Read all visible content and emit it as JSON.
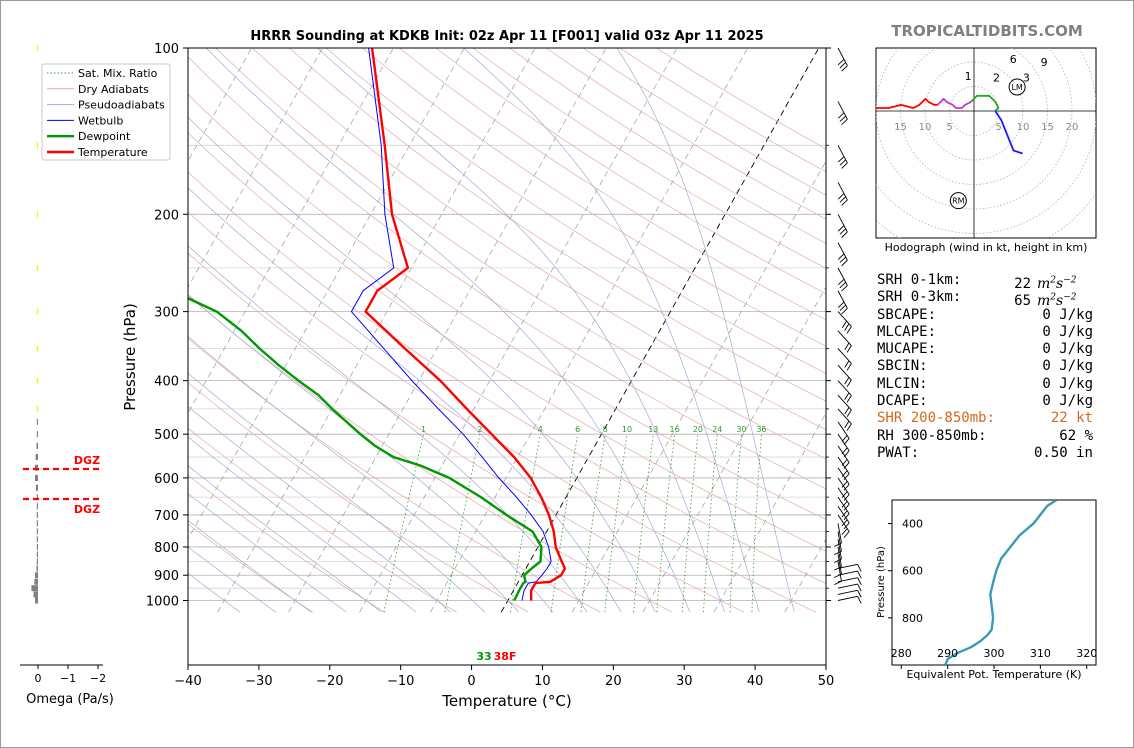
{
  "title": "HRRR Sounding at KDKB Init: 02z Apr 11 [F001] valid 03z Apr 11 2025",
  "watermark": "TROPICALTIDBITS.COM",
  "colors": {
    "temperature": "#ff0000",
    "dewpoint": "#009900",
    "wetbulb": "#0000ff",
    "dry_adiabat": "#e8a8a8",
    "pseudoadiabat": "#a8a8d8",
    "mixing_ratio": "#339933",
    "isotherm": "#888888",
    "theta_e": "#3a9bb5",
    "dgz": "#ff0000"
  },
  "skewt": {
    "xlabel": "Temperature (°C)",
    "ylabel": "Pressure (hPa)",
    "x_ticks": [
      -40,
      -30,
      -20,
      -10,
      0,
      10,
      20,
      30,
      40,
      50
    ],
    "x_tick_labels": [
      "−40",
      "−30",
      "−20",
      "−10",
      "0",
      "10",
      "20",
      "30",
      "40",
      "50"
    ],
    "y_ticks": [
      100,
      200,
      300,
      400,
      500,
      600,
      700,
      800,
      900,
      1000
    ],
    "y_tick_labels": [
      "100",
      "200",
      "300",
      "400",
      "500",
      "600",
      "700",
      "800",
      "900",
      "1000"
    ],
    "legend": [
      "Sat. Mix. Ratio",
      "Dry Adiabats",
      "Pseudoadiabats",
      "Wetbulb",
      "Dewpoint",
      "Temperature"
    ],
    "mixing_ratio_labels": [
      "1",
      "2",
      "4",
      "6",
      "8",
      "10",
      "13",
      "16",
      "20",
      "24",
      "30",
      "36"
    ],
    "surface_dewpoint_label": "33",
    "surface_temperature_label": "38F"
  },
  "chart_data": {
    "type": "line",
    "title": "HRRR Sounding at KDKB Init: 02z Apr 11 [F001] valid 03z Apr 11 2025",
    "xlabel": "Temperature (°C)",
    "ylabel": "Pressure (hPa)",
    "xlim": [
      -40,
      50
    ],
    "ylim": [
      1050,
      100
    ],
    "y_scale": "log",
    "skew": "skew-T log-p",
    "grid": true,
    "legend_position": "top-left",
    "series": [
      {
        "name": "Temperature",
        "p": [
          1000,
          960,
          930,
          925,
          900,
          875,
          850,
          800,
          750,
          700,
          650,
          600,
          550,
          500,
          450,
          400,
          350,
          300,
          275,
          250,
          200,
          150,
          100
        ],
        "t": [
          3.3,
          2.5,
          2.5,
          4.5,
          5.5,
          5.5,
          4.5,
          2.5,
          1.0,
          -1.0,
          -3.5,
          -6.5,
          -10.5,
          -15.5,
          -21.0,
          -27.0,
          -34.5,
          -43.0,
          -43.0,
          -40.5,
          -47.0,
          -53.5,
          -63.0
        ]
      },
      {
        "name": "Dewpoint",
        "p": [
          1000,
          960,
          930,
          925,
          900,
          875,
          850,
          800,
          750,
          700,
          650,
          600,
          570,
          550,
          525,
          500,
          450,
          425,
          400,
          375,
          350,
          325,
          300,
          275,
          250,
          232,
          200,
          175,
          150,
          125,
          100
        ],
        "t": [
          0.9,
          0.8,
          0.8,
          1.0,
          0.3,
          0.8,
          1.5,
          0.5,
          -2.0,
          -7.0,
          -12.0,
          -18.0,
          -23.0,
          -27.5,
          -31.0,
          -34.0,
          -40.0,
          -43.0,
          -47.0,
          -51.0,
          -55.0,
          -59.0,
          -64.0,
          -72.0,
          -82.0,
          -80.0,
          -88.0,
          -96.0,
          -104.0,
          -112.0,
          -120.0
        ]
      },
      {
        "name": "Wetbulb",
        "p": [
          1000,
          960,
          930,
          925,
          900,
          875,
          850,
          800,
          750,
          700,
          650,
          600,
          550,
          500,
          450,
          400,
          350,
          300,
          275,
          250,
          200,
          150,
          100
        ],
        "t": [
          2.0,
          1.5,
          1.5,
          2.5,
          2.8,
          3.0,
          3.0,
          1.5,
          -0.5,
          -3.5,
          -7.0,
          -11.0,
          -15.0,
          -19.5,
          -25.0,
          -31.0,
          -37.5,
          -45.0,
          -45.0,
          -42.5,
          -48.0,
          -54.0,
          -63.5
        ]
      }
    ]
  },
  "omega": {
    "xlabel": "Omega (Pa/s)",
    "x_tick_labels": [
      "0",
      "−1",
      "−2"
    ],
    "dgz_label": "DGZ",
    "p": [
      1000,
      975,
      950,
      925,
      900,
      875,
      850,
      825,
      800,
      775,
      750,
      725,
      700,
      675,
      650,
      625,
      600,
      575,
      550,
      525,
      500,
      475,
      450,
      400,
      350,
      300,
      250,
      200,
      150,
      100
    ],
    "values": [
      0.1,
      0.15,
      0.22,
      0.12,
      0.1,
      0.05,
      0.04,
      0.03,
      0.02,
      0.02,
      0.02,
      0.02,
      0.02,
      0.03,
      0.04,
      0.07,
      0.1,
      0.1,
      0.08,
      0.05,
      0.02,
      0.01,
      0.01,
      0.0,
      0.0,
      0.01,
      0.01,
      0.02,
      0.02,
      0.01
    ],
    "dgz_top_hpa": 578,
    "dgz_bottom_hpa": 655
  },
  "hodograph": {
    "caption": "Hodograph (wind in kt, height in km)",
    "ring_labels": [
      "15",
      "10",
      "5",
      "5",
      "10",
      "15",
      "20"
    ],
    "height_labels": [
      "1",
      "2",
      "3",
      "6",
      "9"
    ],
    "lm_label": "LM",
    "rm_label": "RM",
    "segments": [
      {
        "color": "#1a1aff",
        "pts": [
          [
            16,
            -14
          ],
          [
            13,
            -13
          ],
          [
            9,
            -3
          ],
          [
            7,
            0
          ]
        ]
      },
      {
        "color": "#22aa22",
        "pts": [
          [
            7,
            0
          ],
          [
            8,
            1
          ],
          [
            7,
            3
          ],
          [
            5,
            5
          ],
          [
            3,
            5
          ],
          [
            1,
            5
          ],
          [
            0,
            4
          ],
          [
            -1,
            3
          ]
        ]
      },
      {
        "color": "#cc33cc",
        "pts": [
          [
            -1,
            3
          ],
          [
            -3,
            2
          ],
          [
            -4,
            1
          ],
          [
            -6,
            1
          ],
          [
            -7,
            2
          ],
          [
            -9,
            3
          ],
          [
            -10,
            4
          ],
          [
            -11,
            3
          ],
          [
            -12,
            2
          ]
        ]
      },
      {
        "color": "#ff0000",
        "pts": [
          [
            -12,
            2
          ],
          [
            -13,
            2
          ],
          [
            -15,
            3
          ],
          [
            -16,
            4
          ],
          [
            -17,
            3
          ],
          [
            -18,
            2
          ],
          [
            -20,
            1
          ],
          [
            -24,
            2
          ],
          [
            -28,
            1
          ],
          [
            -33,
            1
          ],
          [
            -35,
            2
          ],
          [
            -37,
            2
          ],
          [
            -38,
            3
          ],
          [
            -39,
            5
          ]
        ]
      }
    ],
    "lm_uv": [
      -18,
      9
    ],
    "rm_uv": [
      0,
      -9
    ]
  },
  "indices": [
    {
      "label": "SRH 0-1km:",
      "value": "22",
      "unit": "m2s-2"
    },
    {
      "label": "SRH 0-3km:",
      "value": "65",
      "unit": "m2s-2"
    },
    {
      "label": "SBCAPE:",
      "value": "0 J/kg"
    },
    {
      "label": "MLCAPE:",
      "value": "0 J/kg"
    },
    {
      "label": "MUCAPE:",
      "value": "0 J/kg"
    },
    {
      "label": "SBCIN:",
      "value": "0 J/kg"
    },
    {
      "label": "MLCIN:",
      "value": "0 J/kg"
    },
    {
      "label": "DCAPE:",
      "value": "0 J/kg"
    },
    {
      "label": "SHR 200-850mb:",
      "value": "22 kt",
      "highlight": true
    },
    {
      "label": "RH 300-850mb:",
      "value": "62 %"
    },
    {
      "label": "PWAT:",
      "value": "0.50 in"
    }
  ],
  "theta_e_panel": {
    "xlabel": "Equivalent Pot. Temperature (K)",
    "ylabel": "Pressure (hPa)",
    "x_ticks": [
      280,
      290,
      300,
      310,
      320
    ],
    "x_tick_labels": [
      "280",
      "290",
      "300",
      "310",
      "320"
    ],
    "y_ticks": [
      400,
      600,
      800
    ],
    "y_tick_labels": [
      "400",
      "600",
      "800"
    ],
    "xlim": [
      278,
      322
    ],
    "ylim": [
      1000,
      300
    ],
    "p": [
      1000,
      975,
      950,
      925,
      900,
      875,
      850,
      800,
      750,
      700,
      650,
      600,
      550,
      500,
      450,
      400,
      350,
      325,
      300
    ],
    "theta_e": [
      289.5,
      290.0,
      292.0,
      295.0,
      297.0,
      298.5,
      299.5,
      299.8,
      299.5,
      299.2,
      299.8,
      300.5,
      301.5,
      303.5,
      305.5,
      308.5,
      310.5,
      311.5,
      313.5
    ]
  }
}
